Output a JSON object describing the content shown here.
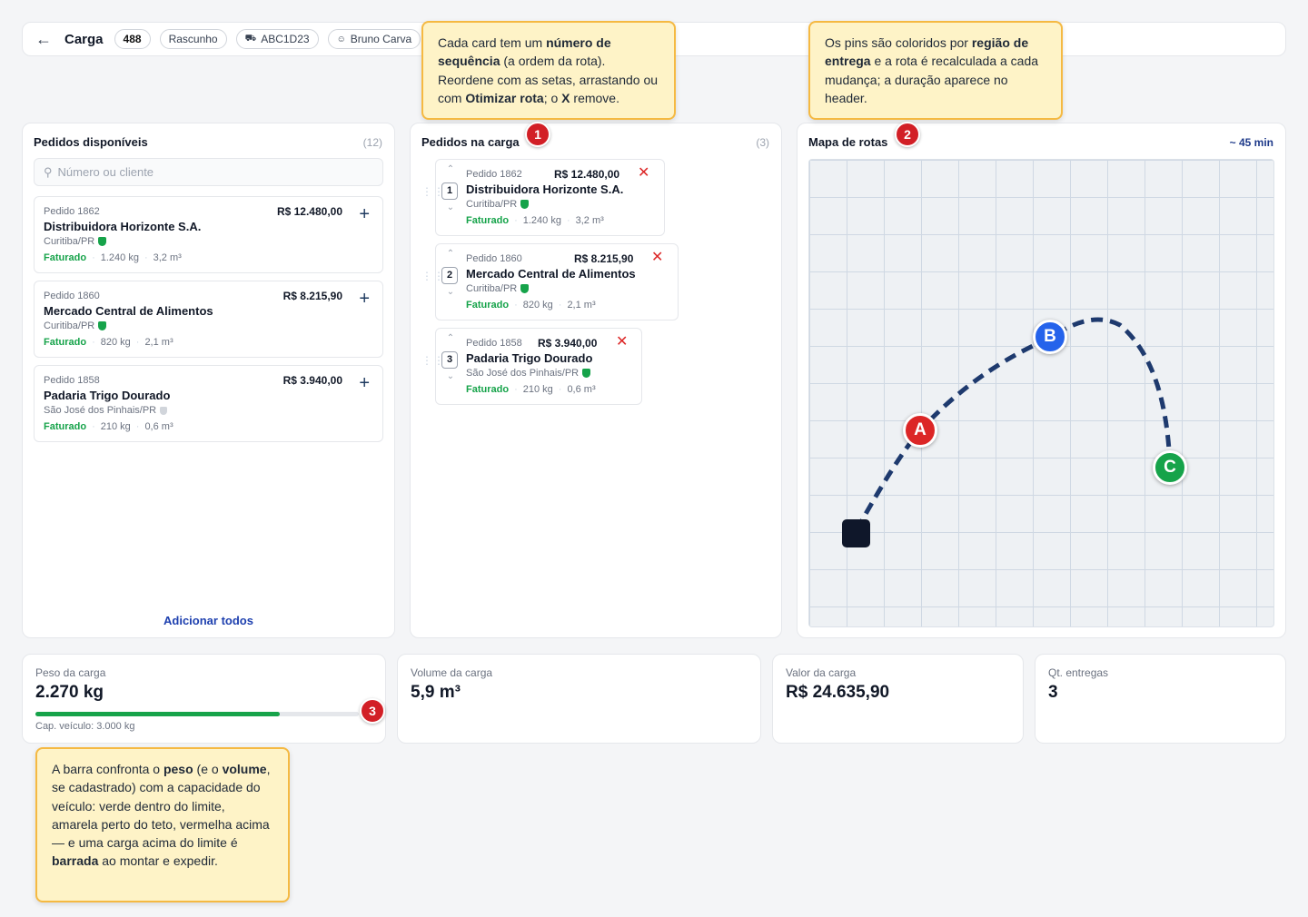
{
  "header": {
    "title": "Carga",
    "count": "488",
    "status": "Rascunho",
    "plate": "ABC1D23",
    "driver": "Bruno Carva"
  },
  "available": {
    "title": "Pedidos disponíveis",
    "count": "(12)",
    "search_placeholder": "Número ou cliente",
    "orders": [
      {
        "num": "Pedido 1862",
        "name": "Distribuidora Horizonte S.A.",
        "city": "Curitiba/PR",
        "status": "Faturado",
        "weight": "1.240 kg",
        "volume": "3,2 m³",
        "value": "R$ 12.480,00"
      },
      {
        "num": "Pedido 1860",
        "name": "Mercado Central de Alimentos",
        "city": "Curitiba/PR",
        "status": "Faturado",
        "weight": "820 kg",
        "volume": "2,1 m³",
        "value": "R$ 8.215,90"
      },
      {
        "num": "Pedido 1858",
        "name": "Padaria Trigo Dourado",
        "city": "São José dos Pinhais/PR",
        "status": "Faturado",
        "weight": "210 kg",
        "volume": "0,6 m³",
        "value": "R$ 3.940,00"
      }
    ],
    "add_all": "Adicionar todos"
  },
  "load": {
    "title": "Pedidos na carga",
    "count": "(3)",
    "orders": [
      {
        "seq": "1",
        "num": "Pedido 1862",
        "name": "Distribuidora Horizonte S.A.",
        "city": "Curitiba/PR",
        "status": "Faturado",
        "weight": "1.240 kg",
        "volume": "3,2 m³",
        "value": "R$ 12.480,00"
      },
      {
        "seq": "2",
        "num": "Pedido 1860",
        "name": "Mercado Central de Alimentos",
        "city": "Curitiba/PR",
        "status": "Faturado",
        "weight": "820 kg",
        "volume": "2,1 m³",
        "value": "R$ 8.215,90"
      },
      {
        "seq": "3",
        "num": "Pedido 1858",
        "name": "Padaria Trigo Dourado",
        "city": "São José dos Pinhais/PR",
        "status": "Faturado",
        "weight": "210 kg",
        "volume": "0,6 m³",
        "value": "R$ 3.940,00"
      }
    ]
  },
  "map": {
    "title": "Mapa de rotas",
    "duration": "~ 45 min",
    "pins": {
      "a": "A",
      "b": "B",
      "c": "C"
    }
  },
  "stats": {
    "weight": {
      "label": "Peso da carga",
      "value": "2.270 kg",
      "capacity": "Cap. veículo: 3.000 kg",
      "fill_fraction": 0.757
    },
    "volume": {
      "label": "Volume da carga",
      "value": "5,9 m³"
    },
    "amount": {
      "label": "Valor da carga",
      "value": "R$ 24.635,90"
    },
    "deliveries": {
      "label": "Qt. entregas",
      "value": "3"
    }
  },
  "callouts": {
    "c1": {
      "badge": "1",
      "t1": "Cada card tem um ",
      "b1": "número de sequência",
      "t2": " (a ordem da rota). Reordene com as setas, arrastando ou com ",
      "b2": "Otimizar rota",
      "t3": "; o ",
      "b3": "X",
      "t4": " remove."
    },
    "c2": {
      "badge": "2",
      "t1": "Os pins são coloridos por ",
      "b1": "região de entrega",
      "t2": " e a rota é recalculada a cada mudança; a duração aparece no header."
    },
    "c3": {
      "badge": "3",
      "t1": "A barra confronta o ",
      "b1": "peso",
      "t2": " (e o ",
      "b2": "volume",
      "t3": ", se cadastrado) com a capacidade do veículo: verde dentro do limite, amarela perto do teto, vermelha acima — e uma carga acima do limite é ",
      "b3": "barrada",
      "t4": " ao montar e expedir."
    }
  },
  "colors": {
    "pin_a": "#dc2626",
    "pin_b": "#2563eb",
    "pin_c": "#16a34a",
    "route": "#1e3a6e",
    "ok": "#16a34a",
    "badge": "#d21f26",
    "callout_bg": "#fef3c7"
  }
}
